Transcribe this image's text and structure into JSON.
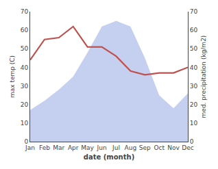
{
  "chart_data": {
    "type": "line",
    "xlabel": "date (month)",
    "ylabel": "max temp (C)",
    "y2label": "med. precipitation (kg/m2)",
    "categories": [
      "Jan",
      "Feb",
      "Mar",
      "Apr",
      "May",
      "Jun",
      "Jul",
      "Aug",
      "Sep",
      "Oct",
      "Nov",
      "Dec"
    ],
    "series": [
      {
        "type": "area",
        "axis": "y2",
        "color": "#c5cff0",
        "values": [
          17,
          22,
          28,
          35,
          48,
          62,
          65,
          62,
          45,
          25,
          18,
          26
        ]
      },
      {
        "type": "line",
        "color": "#c0504d",
        "values": [
          44,
          55,
          56,
          62,
          51,
          51,
          46,
          38,
          36,
          37,
          37,
          40
        ]
      }
    ],
    "ylim": [
      0,
      70
    ],
    "yticks": [
      0,
      10,
      20,
      30,
      40,
      50,
      60,
      70
    ],
    "y2lim": [
      0,
      70
    ],
    "y2ticks": [
      0,
      10,
      20,
      30,
      40,
      50,
      60,
      70
    ],
    "grid": false
  }
}
